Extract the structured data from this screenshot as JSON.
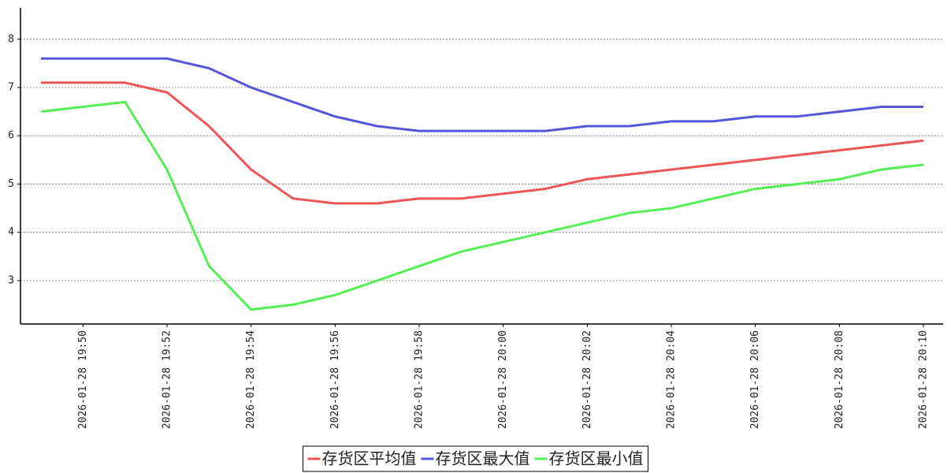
{
  "chart_data": {
    "type": "line",
    "categories": [
      null,
      "2026-01-28 19:50",
      null,
      "2026-01-28 19:52",
      null,
      "2026-01-28 19:54",
      null,
      "2026-01-28 19:56",
      null,
      "2026-01-28 19:58",
      null,
      "2026-01-28 20:00",
      null,
      "2026-01-28 20:02",
      null,
      "2026-01-28 20:04",
      null,
      "2026-01-28 20:06",
      null,
      "2026-01-28 20:08",
      null,
      "2026-01-28 20:10"
    ],
    "series": [
      {
        "name": "存货区平均值",
        "color": "#ee5555",
        "values": [
          7.1,
          7.1,
          7.1,
          6.9,
          6.2,
          5.3,
          4.7,
          4.6,
          4.6,
          4.7,
          4.7,
          4.8,
          4.9,
          5.1,
          5.2,
          5.3,
          5.4,
          5.5,
          5.6,
          5.7,
          5.8,
          5.9
        ]
      },
      {
        "name": "存货区最大值",
        "color": "#5555dd",
        "values": [
          7.6,
          7.6,
          7.6,
          7.6,
          7.4,
          7.0,
          6.7,
          6.4,
          6.2,
          6.1,
          6.1,
          6.1,
          6.1,
          6.2,
          6.2,
          6.3,
          6.3,
          6.4,
          6.4,
          6.5,
          6.6,
          6.6
        ]
      },
      {
        "name": "存货区最小值",
        "color": "#55ee55",
        "values": [
          6.5,
          6.6,
          6.7,
          5.3,
          3.3,
          2.4,
          2.5,
          2.7,
          3.0,
          3.3,
          3.6,
          3.8,
          4.0,
          4.2,
          4.4,
          4.5,
          4.7,
          4.9,
          5.0,
          5.1,
          5.3,
          5.4
        ]
      }
    ],
    "ylim": [
      2.1,
      8.65
    ],
    "yticks": [
      3,
      4,
      5,
      6,
      7,
      8
    ],
    "grid": true
  }
}
